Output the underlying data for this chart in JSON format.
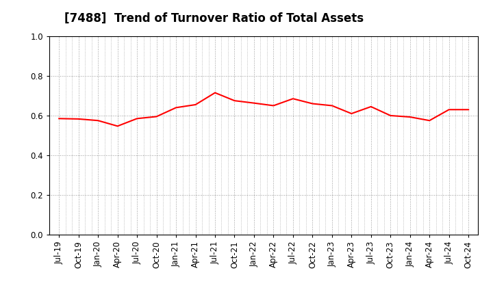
{
  "title": "[7488]  Trend of Turnover Ratio of Total Assets",
  "labels": [
    "Jul-19",
    "Oct-19",
    "Jan-20",
    "Apr-20",
    "Jul-20",
    "Oct-20",
    "Jan-21",
    "Apr-21",
    "Jul-21",
    "Oct-21",
    "Jan-22",
    "Apr-22",
    "Jul-22",
    "Oct-22",
    "Jan-23",
    "Apr-23",
    "Jul-23",
    "Oct-23",
    "Jan-24",
    "Apr-24",
    "Jul-24",
    "Oct-24"
  ],
  "values": [
    0.585,
    0.583,
    0.575,
    0.547,
    0.585,
    0.595,
    0.64,
    0.655,
    0.715,
    0.675,
    0.663,
    0.65,
    0.685,
    0.66,
    0.65,
    0.61,
    0.645,
    0.6,
    0.593,
    0.575,
    0.63,
    0.63
  ],
  "line_color": "#FF0000",
  "line_width": 1.5,
  "ylim": [
    0.0,
    1.0
  ],
  "yticks": [
    0.0,
    0.2,
    0.4,
    0.6,
    0.8,
    1.0
  ],
  "grid_color": "#999999",
  "bg_color": "#FFFFFF",
  "title_fontsize": 12,
  "tick_fontsize": 8.5,
  "title_color": "#000000",
  "title_fontweight": "bold"
}
